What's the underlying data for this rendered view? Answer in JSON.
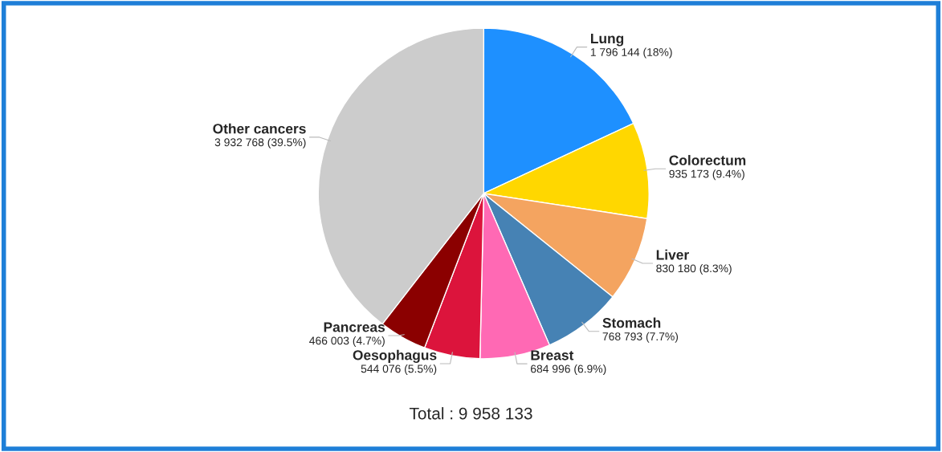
{
  "chart_data": {
    "type": "pie",
    "categories": [
      "Lung",
      "Colorectum",
      "Liver",
      "Stomach",
      "Breast",
      "Oesophagus",
      "Pancreas",
      "Other cancers"
    ],
    "values": [
      1796144,
      935173,
      830180,
      768793,
      684996,
      544076,
      466003,
      3932768
    ],
    "colors": [
      "#1e90ff",
      "#ffd700",
      "#f4a460",
      "#4682b4",
      "#ff69b4",
      "#dc143c",
      "#8b0000",
      "#cccccc"
    ],
    "value_labels": [
      "1 796 144 (18%)",
      "935 173 (9.4%)",
      "830 180 (8.3%)",
      "768 793 (7.7%)",
      "684 996 (6.9%)",
      "544 076 (5.5%)",
      "466 003 (4.7%)",
      "3 932 768 (39.5%)"
    ],
    "annotations": [
      "Total : 9 958 133"
    ]
  }
}
